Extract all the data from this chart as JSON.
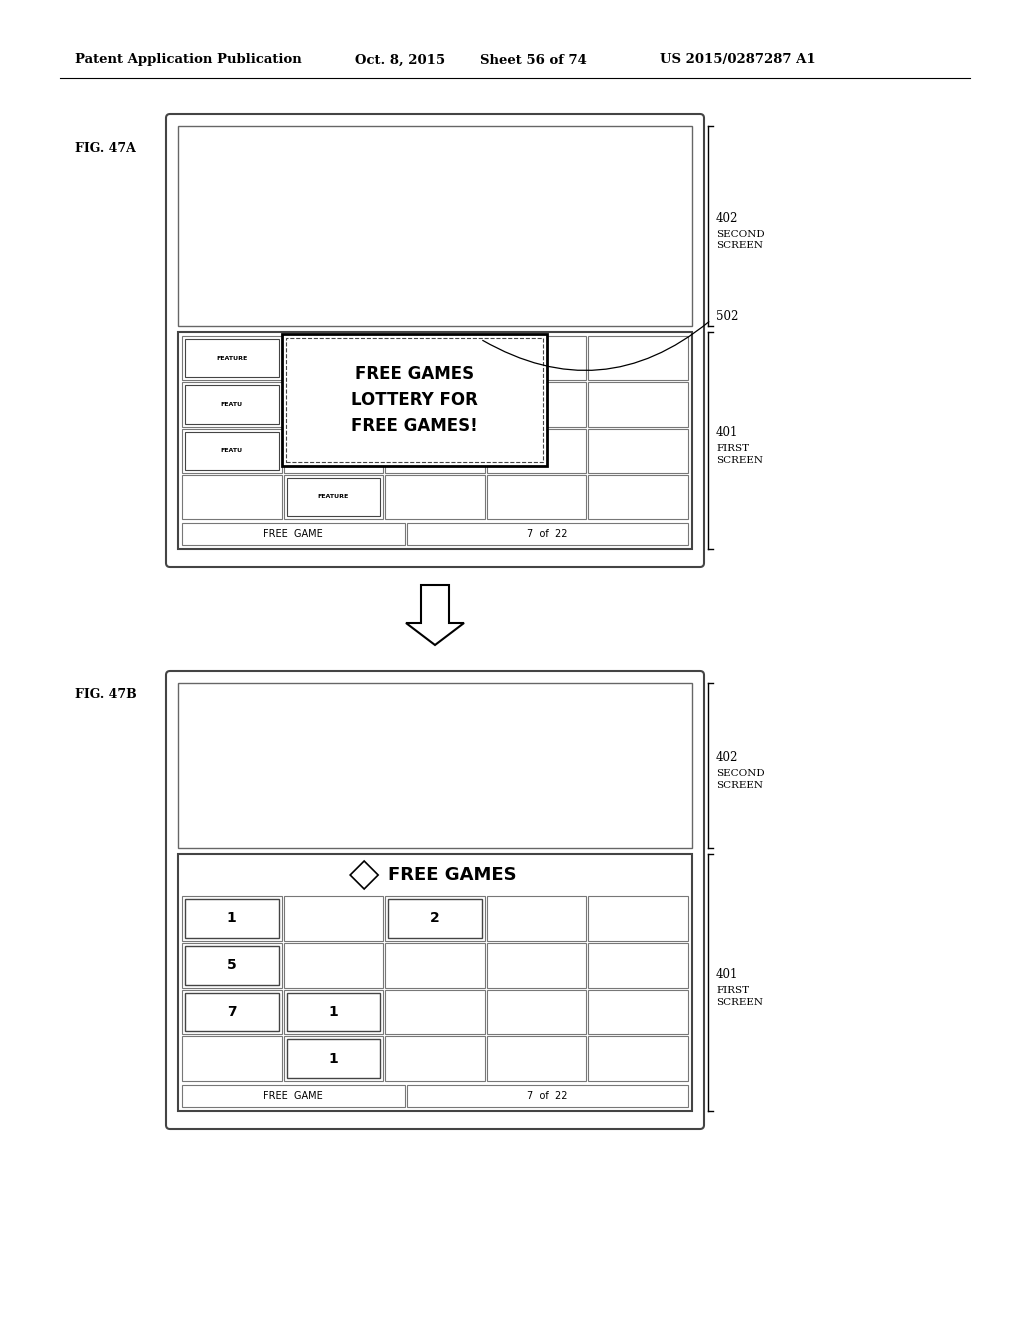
{
  "bg_color": "#ffffff",
  "text_color": "#000000",
  "header_left": "Patent Application Publication",
  "header_date": "Oct. 8, 2015",
  "header_sheet": "Sheet 56 of 74",
  "header_patent": "US 2015/0287287 A1",
  "fig_a_label": "FIG. 47A",
  "fig_b_label": "FIG. 47B",
  "label_402": "402",
  "label_401": "401",
  "label_502": "502",
  "text_second_screen": "SECOND\nSCREEN",
  "text_first_screen": "FIRST\nSCREEN",
  "free_games_lottery_text": "FREE GAMES\nLOTTERY FOR\nFREE GAMES!",
  "free_game_bar_text": "FREE  GAME",
  "count_text": "7  of  22",
  "free_games_title": "FREE GAMES",
  "numbered_cells_b": [
    [
      0,
      0,
      "1"
    ],
    [
      0,
      1,
      "5"
    ],
    [
      0,
      2,
      "7"
    ],
    [
      1,
      2,
      "1"
    ],
    [
      1,
      3,
      "1"
    ],
    [
      2,
      0,
      "2"
    ]
  ]
}
